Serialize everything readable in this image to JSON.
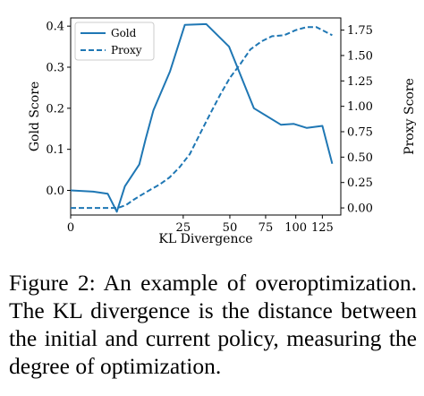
{
  "chart_data": {
    "type": "line",
    "xlabel": "KL Divergence",
    "ylabel_left": "Gold Score",
    "ylabel_right": "Proxy Score",
    "x_axis_scale": "sqrt",
    "xlim": [
      0,
      144
    ],
    "ylim_left": [
      -0.06,
      0.42
    ],
    "ylim_right": [
      -0.07,
      1.87
    ],
    "x_ticks": [
      "0",
      "25",
      "50",
      "75",
      "100",
      "125"
    ],
    "x_tick_values": [
      0,
      25,
      50,
      75,
      100,
      125
    ],
    "y_ticks_left": [
      "0.0",
      "0.1",
      "0.2",
      "0.3",
      "0.4"
    ],
    "y_tick_values_left": [
      0.0,
      0.1,
      0.2,
      0.3,
      0.4
    ],
    "y_ticks_right": [
      "0.00",
      "0.25",
      "0.50",
      "0.75",
      "1.00",
      "1.25",
      "1.50",
      "1.75"
    ],
    "y_tick_values_right": [
      0.0,
      0.25,
      0.5,
      0.75,
      1.0,
      1.25,
      1.5,
      1.75
    ],
    "legend_position": "top-left",
    "grid": false,
    "series": [
      {
        "name": "Gold",
        "axis": "left",
        "style": "solid",
        "color": "#1f77b4",
        "x": [
          0,
          1,
          2.7,
          4.2,
          5.8,
          9.3,
          11.1,
          13.5,
          19.5,
          25.7,
          36.3,
          49.5,
          66.2,
          87.2,
          98.3,
          110,
          125,
          135
        ],
        "y": [
          0.0,
          -0.003,
          -0.008,
          -0.052,
          0.01,
          0.063,
          0.125,
          0.195,
          0.29,
          0.403,
          0.405,
          0.35,
          0.2,
          0.16,
          0.162,
          0.152,
          0.157,
          0.065
        ]
      },
      {
        "name": "Proxy",
        "axis": "right",
        "style": "dashed",
        "color": "#1f77b4",
        "x": [
          0,
          1.4,
          2.8,
          4.4,
          6.1,
          7.8,
          10,
          12.6,
          15.6,
          19.3,
          23.4,
          28,
          33,
          38.5,
          44.3,
          50,
          57,
          63.7,
          72,
          80,
          90,
          100,
          110,
          119,
          135
        ],
        "y": [
          0.0,
          0.0,
          0.0,
          0.0,
          0.03,
          0.08,
          0.13,
          0.18,
          0.23,
          0.3,
          0.4,
          0.53,
          0.73,
          0.93,
          1.12,
          1.28,
          1.42,
          1.56,
          1.64,
          1.69,
          1.7,
          1.75,
          1.78,
          1.78,
          1.7
        ]
      }
    ]
  },
  "caption": {
    "text": "Figure 2: An example of overoptimization. The KL divergence is the distance between the initial and current policy, measuring the degree of optimization."
  }
}
